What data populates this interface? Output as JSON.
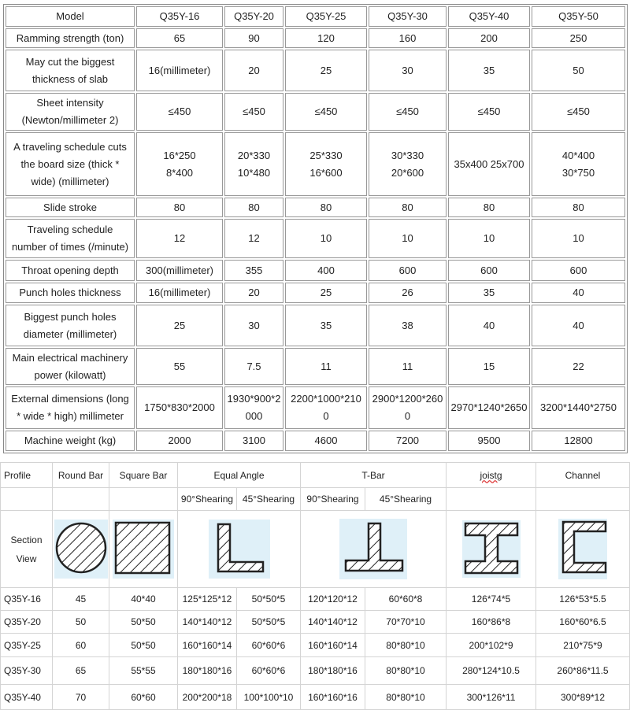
{
  "spec_table": {
    "header": [
      "Model",
      "Q35Y-16",
      "Q35Y-20",
      "Q35Y-25",
      "Q35Y-30",
      "Q35Y-40",
      "Q35Y-50"
    ],
    "rows": [
      [
        "Ramming strength (ton)",
        "65",
        "90",
        "120",
        "160",
        "200",
        "250"
      ],
      [
        "May cut the biggest\nthickness of slab",
        "16(millimeter)",
        "20",
        "25",
        "30",
        "35",
        "50"
      ],
      [
        "Sheet intensity\n(Newton/millimeter 2)",
        "≤450",
        "≤450",
        "≤450",
        "≤450",
        "≤450",
        "≤450"
      ],
      [
        "A traveling schedule cuts\nthe board size (thick *\nwide) (millimeter)",
        "16*250\n8*400",
        "20*330\n10*480",
        "25*330\n16*600",
        "30*330\n20*600",
        "35x400 25x700",
        "40*400\n30*750"
      ],
      [
        "Slide stroke",
        "80",
        "80",
        "80",
        "80",
        "80",
        "80"
      ],
      [
        "Traveling schedule\nnumber of times (/minute)",
        "12",
        "12",
        "10",
        "10",
        "10",
        "10"
      ],
      [
        "Throat opening depth",
        "300(millimeter)",
        "355",
        "400",
        "600",
        "600",
        "600"
      ],
      [
        "Punch holes thickness",
        "16(millimeter)",
        "20",
        "25",
        "26",
        "35",
        "40"
      ],
      [
        "Biggest punch holes\ndiameter (millimeter)",
        "25",
        "30",
        "35",
        "38",
        "40",
        "40"
      ],
      [
        "Main electrical machinery\npower (kilowatt)",
        "55",
        "7.5",
        "11",
        "11",
        "15",
        "22"
      ],
      [
        "External dimensions (long\n* wide * high) millimeter",
        "1750*830*2000",
        "1930*900*2\n000",
        "2200*1000*210\n0",
        "2900*1200*260\n0",
        "2970*1240*2650",
        "3200*1440*2750"
      ],
      [
        "Machine weight (kg)",
        "2000",
        "3100",
        "4600",
        "7200",
        "9500",
        "12800"
      ]
    ]
  },
  "profile_table": {
    "header": [
      "Profile",
      "Round Bar",
      "Square Bar",
      "Equal Angle",
      "T-Bar",
      "joistg",
      "Channel"
    ],
    "sub": [
      "90°Shearing",
      "45°Shearing",
      "90°Shearing",
      "45°Shearing"
    ],
    "section_label": "Section\nView",
    "icons": [
      "round-bar-section-icon",
      "square-bar-section-icon",
      "equal-angle-section-icon",
      "t-bar-section-icon",
      "joist-section-icon",
      "channel-section-icon"
    ],
    "rows": [
      [
        "Q35Y-16",
        "45",
        "40*40",
        "125*125*12",
        "50*50*5",
        "120*120*12",
        "60*60*8",
        "126*74*5",
        "126*53*5.5"
      ],
      [
        "Q35Y-20",
        "50",
        "50*50",
        "140*140*12",
        "50*50*5",
        "140*140*12",
        "70*70*10",
        "160*86*8",
        "160*60*6.5"
      ],
      [
        "Q35Y-25",
        "60",
        "50*50",
        "160*160*14",
        "60*60*6",
        "160*160*14",
        "80*80*10",
        "200*102*9",
        "210*75*9"
      ],
      [
        "Q35Y-30",
        "65",
        "55*55",
        "180*180*16",
        "60*60*6",
        "180*180*16",
        "80*80*10",
        "280*124*10.5",
        "260*86*11.5"
      ],
      [
        "Q35Y-40",
        "70",
        "60*60",
        "200*200*18",
        "100*100*10",
        "160*160*16",
        "80*80*10",
        "300*126*11",
        "300*89*12"
      ]
    ]
  }
}
